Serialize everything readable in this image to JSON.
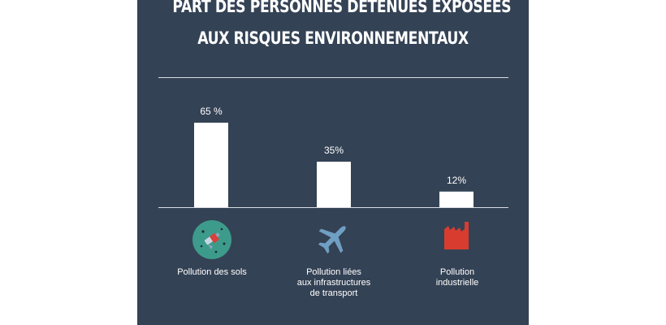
{
  "title_lines": [
    "PART DES PERSONNES DÉTENUES EXPOSÉES",
    "AUX RISQUES ENVIRONNEMENTAUX"
  ],
  "colors": {
    "panel": "#344255",
    "bar": "#ffffff",
    "text": "#ffffff",
    "soil_icon": "#3d9b8c",
    "plane_icon": "#6f9fc3",
    "factory_icon": "#d83c2e"
  },
  "chart_data": {
    "type": "bar",
    "title": "PART DES PERSONNES DÉTENUES EXPOSÉES AUX RISQUES ENVIRONNEMENTAUX",
    "categories": [
      "Pollution des sols",
      "Pollution liées aux infrastructures de transport",
      "Pollution industrielle"
    ],
    "values": [
      65,
      35,
      12
    ],
    "value_labels": [
      "65 %",
      "35%",
      "12%"
    ],
    "unit": "%",
    "ylim": [
      0,
      100
    ],
    "grid": false,
    "legend": "none"
  },
  "categories_display": [
    {
      "lines": [
        "Pollution des sols"
      ],
      "icon": "polluted-soil-icon"
    },
    {
      "lines": [
        "Pollution liées",
        "aux infrastructures",
        "de transport"
      ],
      "icon": "airplane-icon"
    },
    {
      "lines": [
        "Pollution",
        "industrielle"
      ],
      "icon": "factory-icon"
    }
  ]
}
